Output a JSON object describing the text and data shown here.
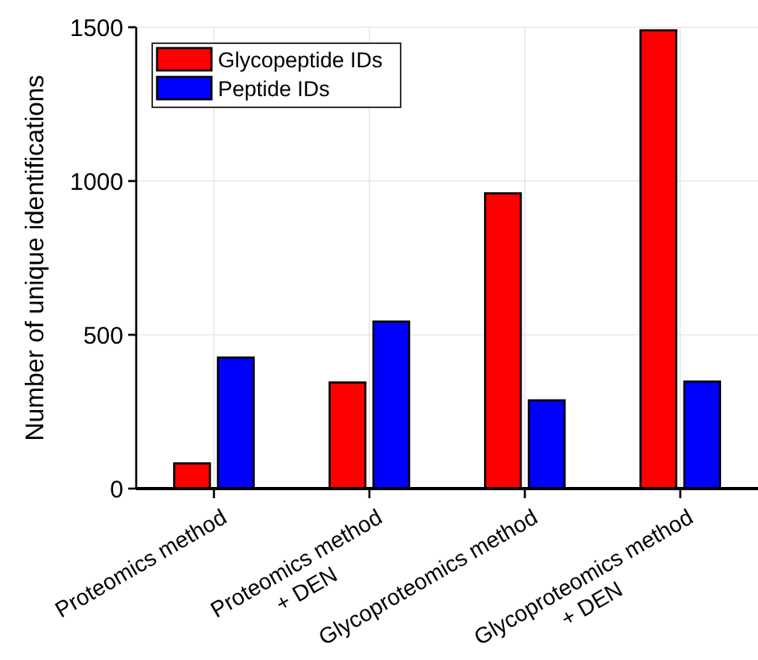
{
  "chart_data": {
    "type": "bar",
    "ylabel": "Number of unique identifications",
    "categories": [
      "Proteomics method",
      "Proteomics method\n+ DEN",
      "Glycoproteomics method",
      "Glycoproteomics method\n+ DEN"
    ],
    "series": [
      {
        "name": "Glycopeptide IDs",
        "color": "#ff0000",
        "values": [
          82,
          345,
          960,
          1490
        ]
      },
      {
        "name": "Peptide IDs",
        "color": "#0000ff",
        "values": [
          426,
          543,
          287,
          348
        ]
      }
    ],
    "ylim": [
      0,
      1500
    ],
    "yticks": [
      0,
      500,
      1000,
      1500
    ],
    "grid": true,
    "legend": "top left"
  }
}
